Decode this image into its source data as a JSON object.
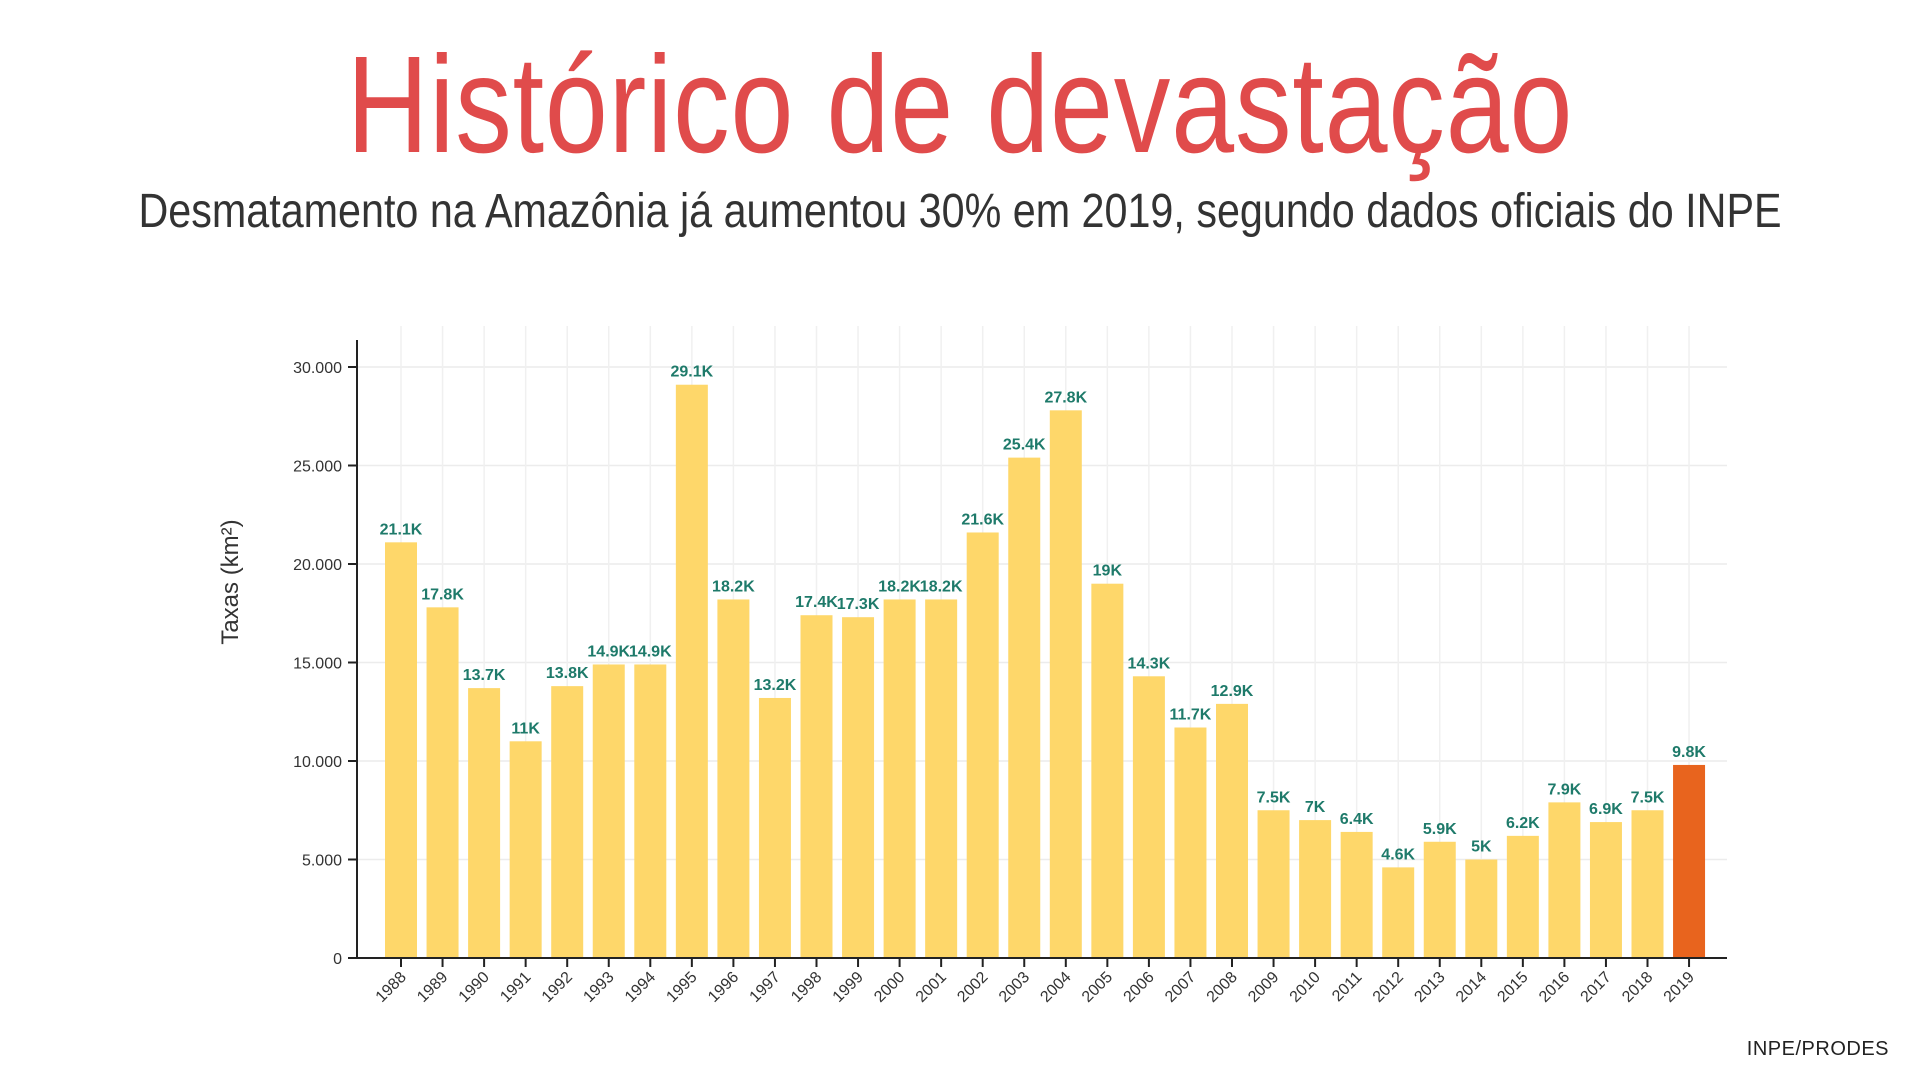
{
  "title": "Histórico de devastação",
  "subtitle": "Desmatamento na Amazônia já aumentou 30% em 2019, segundo dados oficiais do INPE",
  "source": "INPE/PRODES",
  "colors": {
    "title": "#e04b4b",
    "bar": "#fed76a",
    "highlight": "#e8641e",
    "label": "#1e7a6a"
  },
  "chart_data": {
    "type": "bar",
    "ylabel": "Taxas (km²)",
    "xlabel": "",
    "ylim": [
      0,
      32000
    ],
    "yticks": [
      0,
      5000,
      10000,
      15000,
      20000,
      25000,
      30000
    ],
    "ytick_labels": [
      "0",
      "5.000",
      "10.000",
      "15.000",
      "20.000",
      "25.000",
      "30.000"
    ],
    "grid": true,
    "highlight_category": "2019",
    "categories": [
      "1988",
      "1989",
      "1990",
      "1991",
      "1992",
      "1993",
      "1994",
      "1995",
      "1996",
      "1997",
      "1998",
      "1999",
      "2000",
      "2001",
      "2002",
      "2003",
      "2004",
      "2005",
      "2006",
      "2007",
      "2008",
      "2009",
      "2010",
      "2011",
      "2012",
      "2013",
      "2014",
      "2015",
      "2016",
      "2017",
      "2018",
      "2019"
    ],
    "values": [
      21100,
      17800,
      13700,
      11000,
      13800,
      14900,
      14900,
      29100,
      18200,
      13200,
      17400,
      17300,
      18200,
      18200,
      21600,
      25400,
      27800,
      19000,
      14300,
      11700,
      12900,
      7500,
      7000,
      6400,
      4600,
      5900,
      5000,
      6200,
      7900,
      6900,
      7500,
      9800
    ],
    "data_labels": [
      "21.1K",
      "17.8K",
      "13.7K",
      "11K",
      "13.8K",
      "14.9K",
      "14.9K",
      "29.1K",
      "18.2K",
      "13.2K",
      "17.4K",
      "17.3K",
      "18.2K",
      "18.2K",
      "21.6K",
      "25.4K",
      "27.8K",
      "19K",
      "14.3K",
      "11.7K",
      "12.9K",
      "7.5K",
      "7K",
      "6.4K",
      "4.6K",
      "5.9K",
      "5K",
      "6.2K",
      "7.9K",
      "6.9K",
      "7.5K",
      "9.8K"
    ]
  }
}
